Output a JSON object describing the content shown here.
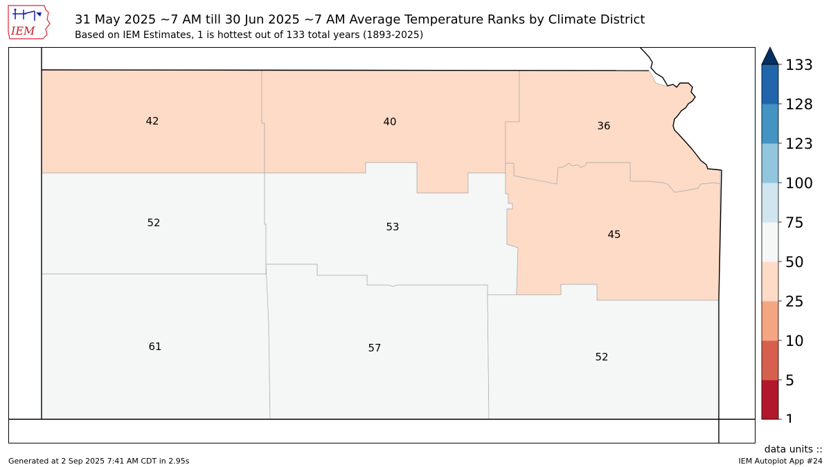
{
  "header": {
    "title": "31 May 2025 ~7 AM till 30 Jun 2025 ~7 AM Average Temperature Ranks by Climate District",
    "subtitle": "Based on IEM Estimates, 1 is hottest out of 133 total years (1893-2025)",
    "logo_text": "IEM"
  },
  "districts": [
    {
      "id": "northwest",
      "rank": "42",
      "color": "#fddbc7"
    },
    {
      "id": "north-central",
      "rank": "40",
      "color": "#fddbc7"
    },
    {
      "id": "northeast",
      "rank": "36",
      "color": "#fddbc7"
    },
    {
      "id": "west-central",
      "rank": "52",
      "color": "#f5f6f6"
    },
    {
      "id": "central",
      "rank": "53",
      "color": "#f5f6f6"
    },
    {
      "id": "east-central",
      "rank": "45",
      "color": "#fddbc7"
    },
    {
      "id": "southwest",
      "rank": "61",
      "color": "#f5f6f6"
    },
    {
      "id": "south-central",
      "rank": "57",
      "color": "#f5f6f6"
    },
    {
      "id": "southeast",
      "rank": "52",
      "color": "#f5f6f6"
    }
  ],
  "colorbar": {
    "ticks": [
      "133",
      "128",
      "123",
      "100",
      "75",
      "50",
      "25",
      "10",
      "5",
      "1"
    ],
    "colors_bottom_to_top": [
      "#b2182b",
      "#d6604d",
      "#f4a582",
      "#fddbc7",
      "#f5f6f6",
      "#d1e5f0",
      "#92c5de",
      "#4393c3",
      "#2166ac",
      "#053061"
    ],
    "units_label": "data units ::"
  },
  "footer": {
    "generated": "Generated at 2 Sep 2025 7:41 AM CDT in 2.95s",
    "app": "IEM Autoplot App #24"
  }
}
